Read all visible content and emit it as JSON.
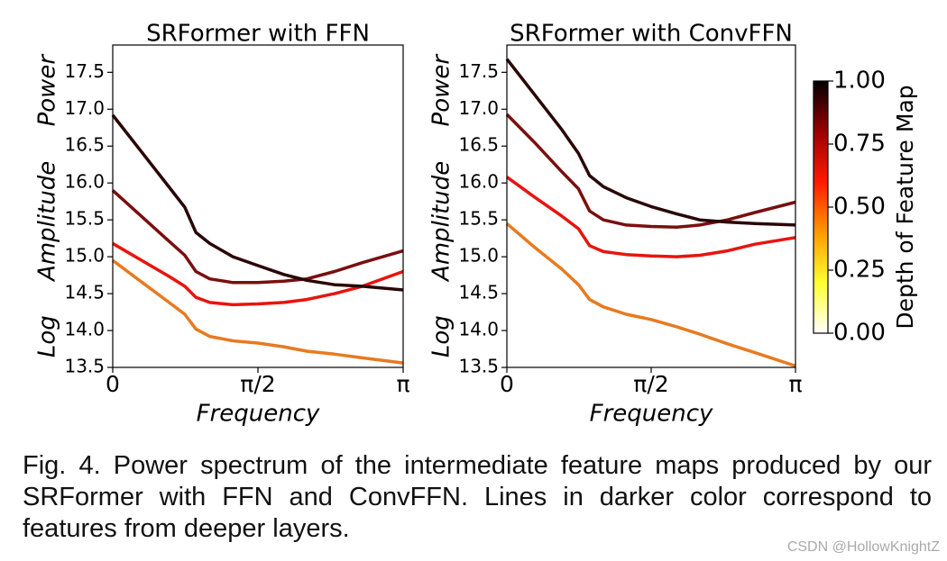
{
  "chart_data": [
    {
      "type": "line",
      "title": "SRFormer with FFN",
      "xlabel": "Frequency",
      "ylabel": "Log Amplitude Power",
      "x": [
        0,
        0.3,
        0.6,
        0.78,
        0.9,
        1.05,
        1.3,
        1.57,
        1.85,
        2.1,
        2.4,
        2.7,
        3.1416
      ],
      "xlim": [
        0,
        3.1416
      ],
      "xticks": [
        0,
        {
          "value": 1.5708,
          "label": "π/2"
        },
        {
          "value": 3.1416,
          "label": "π"
        }
      ],
      "ylim": [
        13.5,
        17.87
      ],
      "yticks": [
        13.5,
        {
          "value": 14,
          "label": "14.0"
        },
        14.5,
        {
          "value": 15,
          "label": "15.0"
        },
        15.5,
        {
          "value": 16,
          "label": "16.0"
        },
        16.5,
        {
          "value": 17,
          "label": "17.0"
        },
        17.5
      ],
      "grid": false,
      "series": [
        {
          "color": "#e87a20",
          "values": [
            14.95,
            14.67,
            14.39,
            14.22,
            14.02,
            13.92,
            13.86,
            13.83,
            13.78,
            13.72,
            13.68,
            13.63,
            13.56
          ]
        },
        {
          "color": "#e8140e",
          "values": [
            15.18,
            14.96,
            14.74,
            14.6,
            14.45,
            14.38,
            14.35,
            14.36,
            14.38,
            14.42,
            14.5,
            14.6,
            14.8
          ]
        },
        {
          "color": "#7a0f0f",
          "values": [
            15.9,
            15.56,
            15.22,
            15.02,
            14.8,
            14.7,
            14.65,
            14.65,
            14.67,
            14.7,
            14.8,
            14.92,
            15.08
          ]
        },
        {
          "color": "#2a0606",
          "values": [
            16.92,
            16.44,
            15.96,
            15.67,
            15.33,
            15.18,
            15.0,
            14.88,
            14.76,
            14.68,
            14.62,
            14.6,
            14.55
          ]
        }
      ]
    },
    {
      "type": "line",
      "title": "SRFormer with ConvFFN",
      "xlabel": "Frequency",
      "ylabel": "Log Amplitude Power",
      "x": [
        0,
        0.3,
        0.6,
        0.78,
        0.9,
        1.05,
        1.3,
        1.57,
        1.85,
        2.1,
        2.4,
        2.7,
        3.1416
      ],
      "xlim": [
        0,
        3.1416
      ],
      "xticks": [
        0,
        {
          "value": 1.5708,
          "label": "π/2"
        },
        {
          "value": 3.1416,
          "label": "π"
        }
      ],
      "ylim": [
        13.5,
        17.87
      ],
      "yticks": [
        13.5,
        {
          "value": 14,
          "label": "14.0"
        },
        14.5,
        {
          "value": 15,
          "label": "15.0"
        },
        15.5,
        {
          "value": 16,
          "label": "16.0"
        },
        16.5,
        {
          "value": 17,
          "label": "17.0"
        },
        17.5
      ],
      "grid": false,
      "series": [
        {
          "color": "#e87a20",
          "values": [
            15.45,
            15.13,
            14.83,
            14.62,
            14.42,
            14.32,
            14.22,
            14.15,
            14.05,
            13.95,
            13.82,
            13.7,
            13.52
          ]
        },
        {
          "color": "#e8140e",
          "values": [
            16.08,
            15.81,
            15.55,
            15.38,
            15.15,
            15.07,
            15.03,
            15.01,
            15.0,
            15.02,
            15.08,
            15.17,
            15.26
          ]
        },
        {
          "color": "#7a0f0f",
          "values": [
            16.93,
            16.55,
            16.15,
            15.92,
            15.62,
            15.5,
            15.43,
            15.41,
            15.4,
            15.43,
            15.5,
            15.6,
            15.74
          ]
        },
        {
          "color": "#2a0606",
          "values": [
            17.68,
            17.2,
            16.72,
            16.4,
            16.1,
            15.95,
            15.8,
            15.68,
            15.58,
            15.5,
            15.47,
            15.45,
            15.43
          ]
        }
      ]
    },
    {
      "type": "colorbar",
      "ylabel": "Depth of Feature Map",
      "ylim": [
        0,
        1
      ],
      "yticks": [
        {
          "value": 0,
          "label": "0.00"
        },
        {
          "value": 0.25,
          "label": "0.25"
        },
        {
          "value": 0.5,
          "label": "0.50"
        },
        {
          "value": 0.75,
          "label": "0.75"
        },
        {
          "value": 1,
          "label": "1.00"
        }
      ],
      "colors": [
        "#ffffff",
        "#ffff30",
        "#ff9a00",
        "#ff1a00",
        "#9a0000",
        "#000000"
      ]
    }
  ],
  "caption": "Fig. 4. Power spectrum of the intermediate feature maps produced by our SRFormer with FFN and ConvFFN. Lines in darker color correspond to features from deeper layers.",
  "watermark": "CSDN @HollowKnightZ"
}
